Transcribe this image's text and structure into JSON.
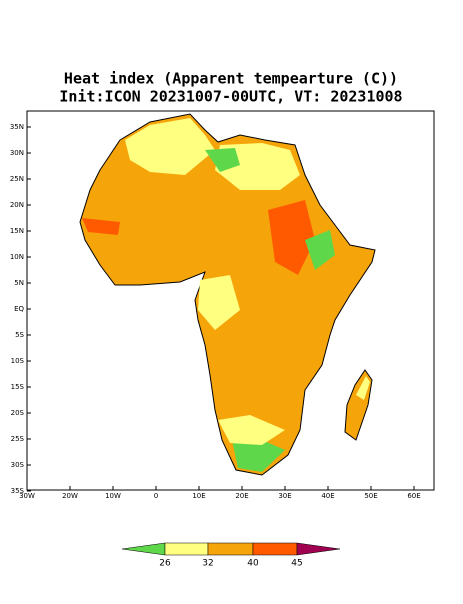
{
  "title": "Heat index (Apparent tempearture (C))",
  "subtitle": "Init:ICON 20231007-00UTC, VT: 20231008",
  "lat_labels": [
    "35N",
    "30N",
    "25N",
    "20N",
    "15N",
    "10N",
    "5N",
    "EQ",
    "5S",
    "10S",
    "15S",
    "20S",
    "25S",
    "30S",
    "35S"
  ],
  "lon_labels": [
    "30W",
    "20W",
    "10W",
    "0",
    "10E",
    "20E",
    "30E",
    "40E",
    "50E",
    "60E"
  ],
  "colorbar": {
    "labels": [
      "26",
      "32",
      "40",
      "45"
    ]
  }
}
